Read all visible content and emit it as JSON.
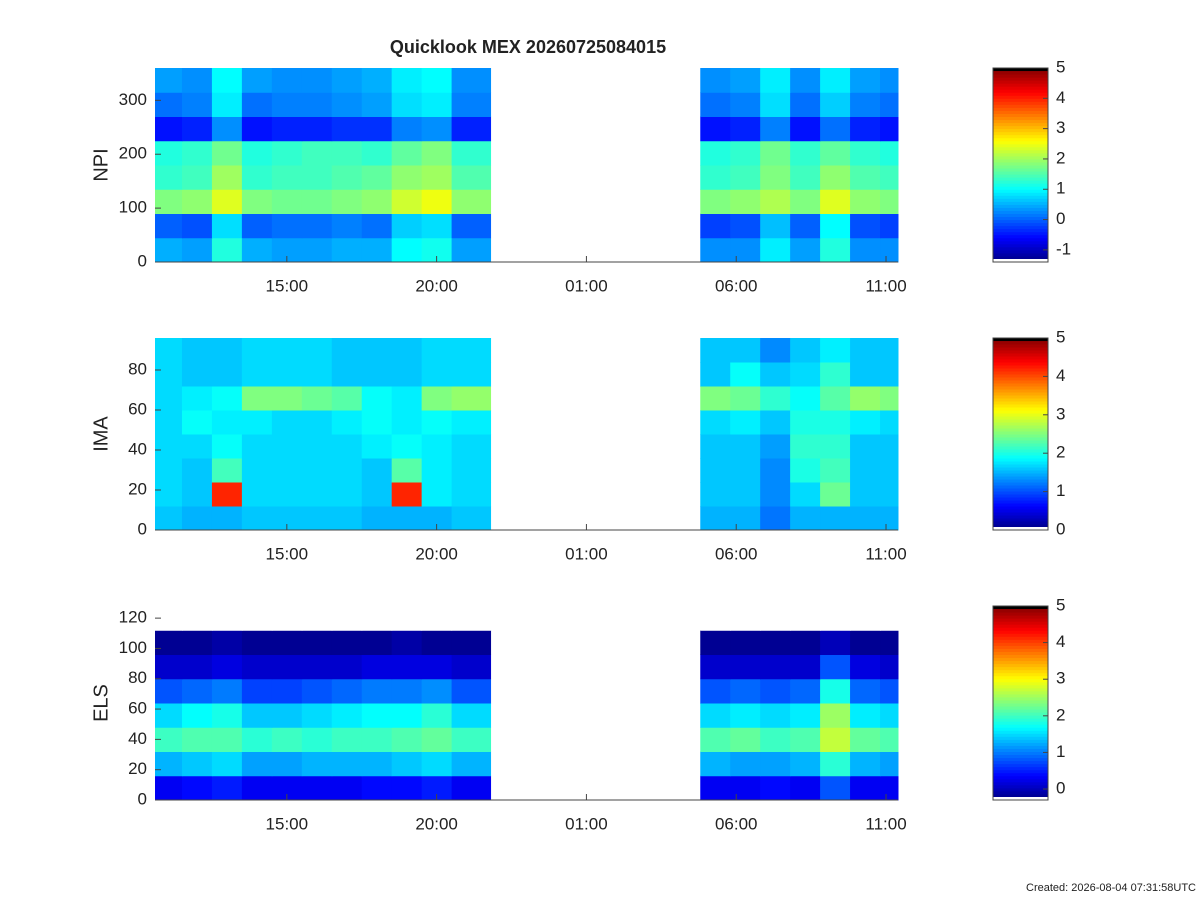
{
  "footnote": "Created: 2026-08-04 07:31:58UTC",
  "chart_data": [
    {
      "type": "heatmap",
      "title": "Quicklook MEX 20260725084015",
      "y_label": "NPI",
      "colormap": "jet",
      "xlim": [
        10.6,
        35.4
      ],
      "xticks": [
        {
          "value": 15,
          "label": "15:00"
        },
        {
          "value": 20,
          "label": "20:00"
        },
        {
          "value": 25,
          "label": "01:00"
        },
        {
          "value": 30,
          "label": "06:00"
        },
        {
          "value": 35,
          "label": "11:00"
        }
      ],
      "ylim": [
        0,
        360
      ],
      "yticks": [
        0,
        100,
        200,
        300
      ],
      "clim": [
        -1.4,
        5
      ],
      "cticks": [
        -1,
        0,
        1,
        2,
        3,
        4,
        5
      ],
      "xbins": [
        10.6,
        11.5,
        12.5,
        13.5,
        14.5,
        15.5,
        16.5,
        17.5,
        18.5,
        19.5,
        20.5,
        21.8,
        28.8,
        29.8,
        30.8,
        31.8,
        32.8,
        33.8,
        34.8,
        35.4
      ],
      "ybins": [
        0,
        45,
        90,
        135,
        180,
        225,
        270,
        315,
        360
      ],
      "values": [
        [
          0.5,
          0.4,
          1.2,
          0.5,
          0.4,
          0.4,
          0.5,
          0.5,
          1.0,
          1.1,
          0.4,
          null,
          0.3,
          0.3,
          0.9,
          0.4,
          1.2,
          0.3,
          0.3
        ],
        [
          0.0,
          -0.1,
          0.8,
          0.0,
          0.1,
          0.1,
          0.2,
          0.1,
          0.7,
          0.8,
          0.0,
          null,
          -0.2,
          -0.1,
          0.6,
          0.0,
          1.0,
          -0.1,
          -0.2
        ],
        [
          1.8,
          1.9,
          2.4,
          1.8,
          1.7,
          1.7,
          1.8,
          1.9,
          2.3,
          2.5,
          1.9,
          null,
          1.8,
          1.9,
          2.1,
          1.8,
          2.4,
          1.9,
          1.8
        ],
        [
          1.3,
          1.4,
          2.0,
          1.3,
          1.4,
          1.4,
          1.5,
          1.6,
          1.9,
          2.0,
          1.5,
          null,
          1.3,
          1.4,
          1.8,
          1.4,
          1.9,
          1.5,
          1.4
        ],
        [
          1.2,
          1.3,
          1.7,
          1.2,
          1.3,
          1.4,
          1.4,
          1.3,
          1.6,
          1.8,
          1.3,
          null,
          1.2,
          1.3,
          1.7,
          1.3,
          1.6,
          1.3,
          1.2
        ],
        [
          -0.5,
          -0.4,
          0.3,
          -0.5,
          -0.4,
          -0.4,
          -0.3,
          -0.3,
          0.2,
          0.3,
          -0.4,
          null,
          -0.5,
          -0.4,
          0.2,
          -0.5,
          0.1,
          -0.4,
          -0.5
        ],
        [
          0.1,
          0.2,
          0.9,
          0.1,
          0.2,
          0.2,
          0.3,
          0.4,
          0.8,
          0.9,
          0.2,
          null,
          0.1,
          0.2,
          0.8,
          0.1,
          0.7,
          0.2,
          0.1
        ],
        [
          0.4,
          0.3,
          1.0,
          0.4,
          0.3,
          0.3,
          0.4,
          0.5,
          0.9,
          1.0,
          0.3,
          null,
          0.3,
          0.4,
          0.9,
          0.3,
          0.9,
          0.4,
          0.3
        ]
      ]
    },
    {
      "type": "heatmap",
      "y_label": "IMA",
      "colormap": "jet",
      "xlim": [
        10.6,
        35.4
      ],
      "xticks": [
        {
          "value": 15,
          "label": "15:00"
        },
        {
          "value": 20,
          "label": "20:00"
        },
        {
          "value": 25,
          "label": "01:00"
        },
        {
          "value": 30,
          "label": "06:00"
        },
        {
          "value": 35,
          "label": "11:00"
        }
      ],
      "ylim": [
        0,
        96
      ],
      "yticks": [
        0,
        20,
        40,
        60,
        80
      ],
      "clim": [
        0,
        5
      ],
      "cticks": [
        0,
        1,
        2,
        3,
        4,
        5
      ],
      "xbins": [
        10.6,
        11.5,
        12.5,
        13.5,
        14.5,
        15.5,
        16.5,
        17.5,
        18.5,
        19.5,
        20.5,
        21.8,
        28.8,
        29.8,
        30.8,
        31.8,
        32.8,
        33.8,
        34.8,
        35.4
      ],
      "ybins": [
        0,
        12,
        24,
        36,
        48,
        60,
        72,
        84,
        96
      ],
      "values": [
        [
          1.6,
          1.5,
          1.5,
          1.6,
          1.6,
          1.6,
          1.6,
          1.5,
          1.5,
          1.5,
          1.6,
          null,
          1.5,
          1.5,
          1.2,
          1.5,
          1.5,
          1.5,
          1.5
        ],
        [
          1.7,
          1.6,
          4.2,
          1.7,
          1.7,
          1.7,
          1.7,
          1.6,
          4.2,
          1.8,
          1.7,
          null,
          1.6,
          1.6,
          1.3,
          1.7,
          2.4,
          1.6,
          1.6
        ],
        [
          1.7,
          1.6,
          2.2,
          1.7,
          1.7,
          1.7,
          1.7,
          1.6,
          2.3,
          1.8,
          1.7,
          null,
          1.6,
          1.6,
          1.3,
          2.0,
          2.2,
          1.6,
          1.6
        ],
        [
          1.7,
          1.7,
          1.9,
          1.7,
          1.7,
          1.7,
          1.7,
          1.8,
          1.9,
          1.8,
          1.7,
          null,
          1.6,
          1.6,
          1.4,
          2.1,
          2.1,
          1.6,
          1.6
        ],
        [
          1.7,
          1.9,
          1.8,
          1.8,
          1.7,
          1.7,
          1.8,
          1.9,
          1.8,
          1.9,
          1.8,
          null,
          1.7,
          1.8,
          1.6,
          2.0,
          2.0,
          1.8,
          1.7
        ],
        [
          1.7,
          1.8,
          1.9,
          2.5,
          2.5,
          2.4,
          2.3,
          1.9,
          1.8,
          2.5,
          2.6,
          null,
          2.5,
          2.4,
          2.1,
          1.9,
          2.3,
          2.6,
          2.5
        ],
        [
          1.7,
          1.6,
          1.6,
          1.7,
          1.7,
          1.7,
          1.6,
          1.6,
          1.6,
          1.7,
          1.7,
          null,
          1.6,
          1.9,
          1.6,
          1.7,
          2.1,
          1.6,
          1.6
        ],
        [
          1.7,
          1.6,
          1.6,
          1.7,
          1.7,
          1.7,
          1.6,
          1.6,
          1.6,
          1.7,
          1.7,
          null,
          1.6,
          1.6,
          1.3,
          1.6,
          1.8,
          1.6,
          1.6
        ]
      ]
    },
    {
      "type": "heatmap",
      "y_label": "ELS",
      "colormap": "jet",
      "xlim": [
        10.6,
        35.4
      ],
      "xticks": [
        {
          "value": 15,
          "label": "15:00"
        },
        {
          "value": 20,
          "label": "20:00"
        },
        {
          "value": 25,
          "label": "01:00"
        },
        {
          "value": 30,
          "label": "06:00"
        },
        {
          "value": 35,
          "label": "11:00"
        }
      ],
      "ylim": [
        0,
        128
      ],
      "yticks": [
        0,
        20,
        40,
        60,
        80,
        100,
        120
      ],
      "clim": [
        -0.3,
        5
      ],
      "cticks": [
        0,
        1,
        2,
        3,
        4,
        5
      ],
      "xbins": [
        10.6,
        11.5,
        12.5,
        13.5,
        14.5,
        15.5,
        16.5,
        17.5,
        18.5,
        19.5,
        20.5,
        21.8,
        28.8,
        29.8,
        30.8,
        31.8,
        32.8,
        33.8,
        34.8,
        35.4
      ],
      "ybins": [
        0,
        16,
        32,
        48,
        64,
        80,
        96,
        112,
        128
      ],
      "values": [
        [
          0.3,
          0.4,
          0.5,
          0.3,
          0.3,
          0.3,
          0.3,
          0.4,
          0.4,
          0.5,
          0.3,
          null,
          0.3,
          0.3,
          0.4,
          0.3,
          0.8,
          0.3,
          0.3
        ],
        [
          1.3,
          1.4,
          1.5,
          1.2,
          1.2,
          1.3,
          1.3,
          1.3,
          1.4,
          1.5,
          1.3,
          null,
          1.3,
          1.2,
          1.2,
          1.3,
          1.9,
          1.3,
          1.2
        ],
        [
          2.0,
          2.1,
          2.1,
          1.9,
          2.0,
          1.9,
          2.0,
          2.0,
          2.1,
          2.2,
          2.0,
          null,
          2.1,
          2.2,
          2.0,
          2.1,
          2.7,
          2.2,
          2.1
        ],
        [
          1.5,
          1.7,
          1.8,
          1.4,
          1.4,
          1.5,
          1.6,
          1.7,
          1.7,
          1.9,
          1.5,
          null,
          1.5,
          1.6,
          1.5,
          1.6,
          2.5,
          1.6,
          1.5
        ],
        [
          0.8,
          0.9,
          1.0,
          0.7,
          0.7,
          0.8,
          0.9,
          1.0,
          1.0,
          1.1,
          0.8,
          null,
          0.8,
          0.9,
          0.8,
          0.9,
          1.8,
          0.9,
          0.8
        ],
        [
          0.1,
          0.1,
          0.2,
          0.1,
          0.1,
          0.1,
          0.1,
          0.2,
          0.2,
          0.2,
          0.1,
          null,
          0.1,
          0.1,
          0.1,
          0.1,
          0.8,
          0.2,
          0.1
        ],
        [
          -0.2,
          -0.2,
          -0.1,
          -0.2,
          -0.2,
          -0.2,
          -0.2,
          -0.2,
          -0.1,
          -0.2,
          -0.2,
          null,
          -0.2,
          -0.2,
          -0.2,
          -0.2,
          0.0,
          -0.2,
          -0.2
        ],
        [
          -0.4,
          -0.4,
          -0.4,
          -0.4,
          -0.4,
          -0.4,
          -0.4,
          -0.4,
          -0.4,
          -0.4,
          -0.4,
          null,
          -0.4,
          -0.4,
          -0.4,
          -0.4,
          -0.4,
          -0.4,
          -0.4
        ]
      ]
    }
  ]
}
